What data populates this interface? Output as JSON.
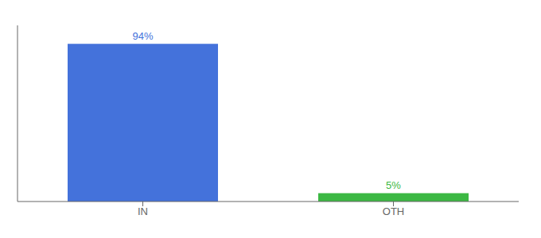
{
  "chart_data": {
    "type": "bar",
    "categories": [
      "IN",
      "OTH"
    ],
    "values": [
      94,
      5
    ],
    "value_labels": [
      "94%",
      "5%"
    ],
    "colors": [
      "#4472db",
      "#3cb843"
    ],
    "ylim": [
      0,
      105
    ],
    "data_labels": true,
    "grid": false,
    "tick_labels": "x"
  }
}
